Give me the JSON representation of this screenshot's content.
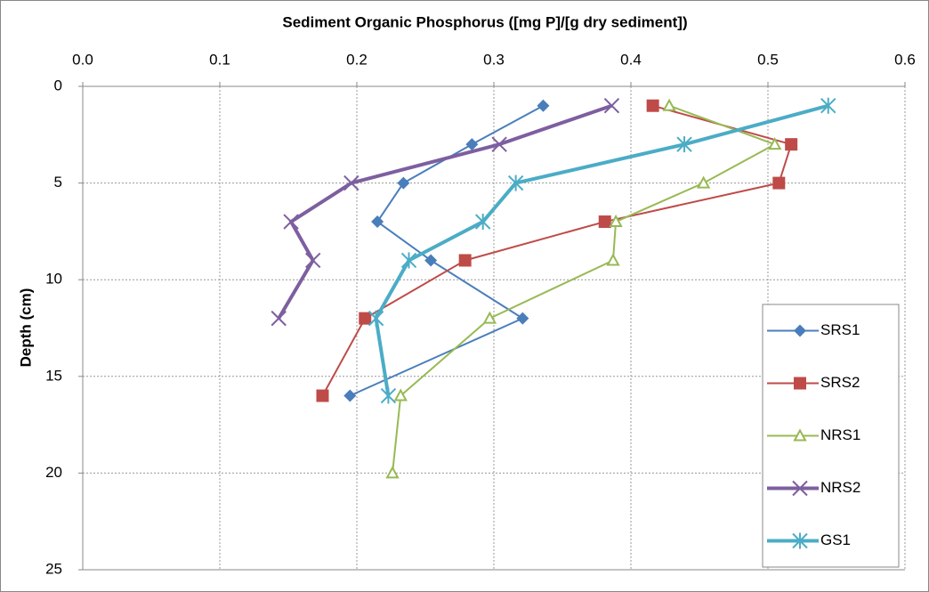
{
  "chart_data": {
    "type": "line",
    "title": "Sediment Organic Phosphorus ([mg P]/[g dry sediment])",
    "y_label": "Depth (cm)",
    "x_axis_position": "top",
    "y_inverted": true,
    "xlim": [
      0,
      0.6
    ],
    "xticks": [
      {
        "value": 0,
        "label": "0.0"
      },
      0.1,
      0.2,
      0.3,
      0.4,
      0.5,
      0.6
    ],
    "ylim": [
      0,
      25
    ],
    "yticks": [
      0,
      5,
      10,
      15,
      20,
      25
    ],
    "grid": true,
    "legend": "lower right",
    "series": [
      {
        "name": "SRS1",
        "color": "#4a7ebb",
        "marker": "diamond",
        "line_width": 2,
        "x": [
          0.336,
          0.284,
          0.234,
          0.215,
          0.254,
          0.321,
          0.195
        ],
        "values": [
          1,
          3,
          5,
          7,
          9,
          12,
          16
        ]
      },
      {
        "name": "SRS2",
        "color": "#be4b48",
        "marker": "square",
        "line_width": 2,
        "x": [
          0.416,
          0.517,
          0.508,
          0.381,
          0.279,
          0.206,
          0.175
        ],
        "values": [
          1,
          3,
          5,
          7,
          9,
          12,
          16
        ]
      },
      {
        "name": "NRS1",
        "color": "#98b954",
        "marker": "triangle",
        "line_width": 2,
        "x": [
          0.428,
          0.505,
          0.453,
          0.389,
          0.387,
          0.297,
          0.232,
          0.226
        ],
        "values": [
          1,
          3,
          5,
          7,
          9,
          12,
          16,
          20
        ]
      },
      {
        "name": "NRS2",
        "color": "#7d5fa0",
        "marker": "x",
        "line_width": 4,
        "x": [
          0.386,
          0.304,
          0.196,
          0.152,
          0.168,
          0.143
        ],
        "values": [
          1,
          3,
          5,
          7,
          9,
          12
        ]
      },
      {
        "name": "GS1",
        "color": "#4bacc6",
        "marker": "star",
        "line_width": 4,
        "x": [
          0.544,
          0.439,
          0.316,
          0.292,
          0.238,
          0.214,
          0.223
        ],
        "values": [
          1,
          3,
          5,
          7,
          9,
          12,
          16
        ]
      }
    ]
  }
}
